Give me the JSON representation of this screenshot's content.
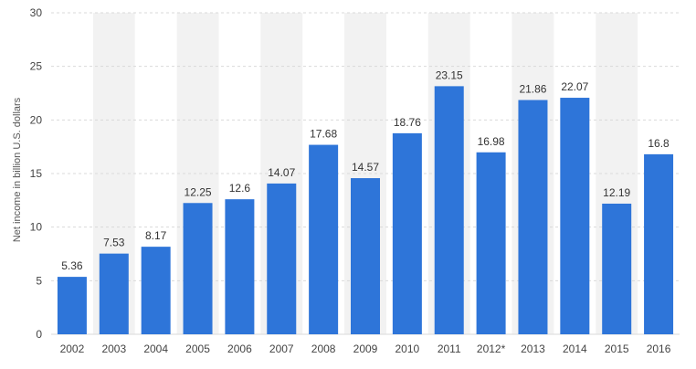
{
  "chart_data": {
    "type": "bar",
    "categories": [
      "2002",
      "2003",
      "2004",
      "2005",
      "2006",
      "2007",
      "2008",
      "2009",
      "2010",
      "2011",
      "2012*",
      "2013",
      "2014",
      "2015",
      "2016"
    ],
    "values": [
      5.36,
      7.53,
      8.17,
      12.25,
      12.6,
      14.07,
      17.68,
      14.57,
      18.76,
      23.15,
      16.98,
      21.86,
      22.07,
      12.19,
      16.8
    ],
    "value_labels": [
      "5.36",
      "7.53",
      "8.17",
      "12.25",
      "12.6",
      "14.07",
      "17.68",
      "14.57",
      "18.76",
      "23.15",
      "16.98",
      "21.86",
      "22.07",
      "12.19",
      "16.8"
    ],
    "title": "",
    "xlabel": "",
    "ylabel": "Net income in billion U.S. dollars",
    "ylim": [
      0,
      30
    ],
    "yticks": [
      "0",
      "5",
      "10",
      "15",
      "20",
      "25",
      "30"
    ],
    "grid": true,
    "legend": "none",
    "bar_color": "#2e75d9",
    "band_color": "#f2f2f2",
    "grid_color": "#d9d9d9"
  }
}
